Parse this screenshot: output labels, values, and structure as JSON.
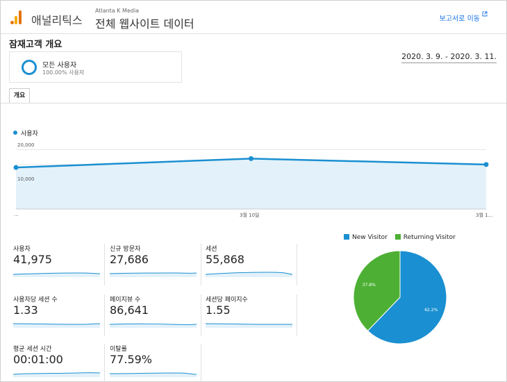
{
  "header": {
    "app_name": "애널리틱스",
    "account": "Atlanta K Media",
    "property": "전체 웹사이트 데이터",
    "report_link": "보고서로 이동"
  },
  "page": {
    "title": "잠재고객 개요",
    "date_range": "2020. 3. 9. - 2020. 3. 11."
  },
  "segment": {
    "name": "모든 사용자",
    "percent": "100.00% 사용자"
  },
  "tabs": [
    {
      "label": "개요"
    }
  ],
  "colors": {
    "accent": "#1a8fd1",
    "new_visitor": "#1a8fd1",
    "returning_visitor": "#4db034"
  },
  "chart_data": {
    "type": "line",
    "series": [
      {
        "name": "사용자",
        "values": [
          14000,
          17000,
          15000
        ]
      }
    ],
    "x_labels": [
      "...",
      "3월 10일",
      "3월 1..."
    ],
    "y_ticks": [
      "20,000",
      "10,000"
    ],
    "ylim": [
      0,
      20000
    ]
  },
  "metrics": [
    {
      "label": "사용자",
      "value": "41,975"
    },
    {
      "label": "신규 방문자",
      "value": "27,686"
    },
    {
      "label": "세션",
      "value": "55,868"
    },
    {
      "label": "사용자당 세션 수",
      "value": "1.33"
    },
    {
      "label": "페이지뷰 수",
      "value": "86,641"
    },
    {
      "label": "세션당 페이지수",
      "value": "1.55"
    },
    {
      "label": "평균 세션 시간",
      "value": "00:01:00"
    },
    {
      "label": "이탈률",
      "value": "77.59%"
    }
  ],
  "pie_chart": {
    "type": "pie",
    "legend": [
      "New Visitor",
      "Returning Visitor"
    ],
    "values": [
      62.2,
      37.8
    ],
    "labels": [
      "62.2%",
      "37.8%"
    ]
  }
}
